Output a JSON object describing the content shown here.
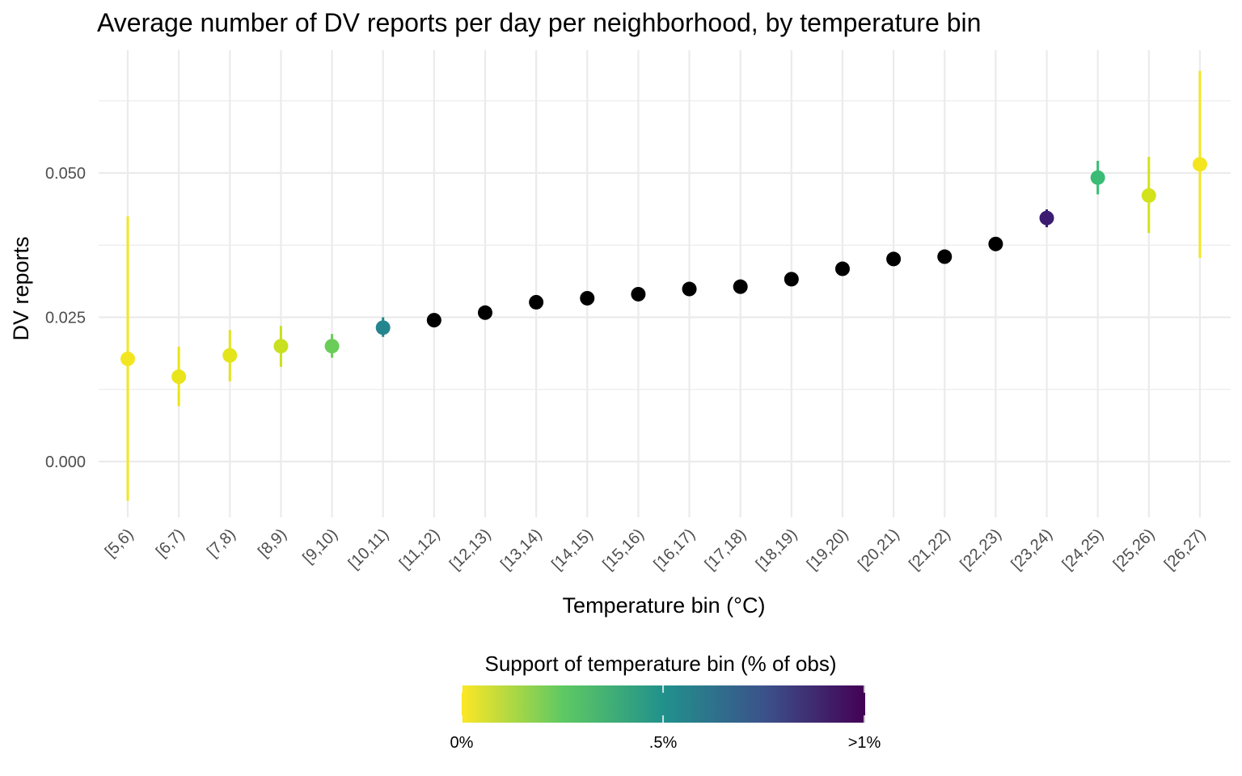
{
  "chart_data": {
    "type": "scatter",
    "title": "Average number of DV reports per day per neighborhood, by temperature bin",
    "xlabel": "Temperature bin (°C)",
    "ylabel": "DV reports",
    "ylim": [
      -0.0068,
      0.0675
    ],
    "yticks": [
      0.0,
      0.025,
      0.05
    ],
    "ytick_labels": [
      "0.000",
      "0.025",
      "0.050"
    ],
    "grid": true,
    "categories": [
      "[5,6)",
      "[6,7)",
      "[7,8)",
      "[8,9)",
      "[9,10)",
      "[10,11)",
      "[11,12)",
      "[12,13)",
      "[13,14)",
      "[14,15)",
      "[15,16)",
      "[16,17)",
      "[17,18)",
      "[18,19)",
      "[19,20)",
      "[20,21)",
      "[21,22)",
      "[22,23)",
      "[23,24)",
      "[24,25)",
      "[25,26)",
      "[26,27)"
    ],
    "series": [
      {
        "values": [
          0.0178,
          0.0147,
          0.0184,
          0.02,
          0.02,
          0.0232,
          0.0245,
          0.0258,
          0.0276,
          0.0283,
          0.029,
          0.0299,
          0.0303,
          0.0316,
          0.0334,
          0.0351,
          0.0355,
          0.0377,
          0.0422,
          0.0492,
          0.0461,
          0.0515
        ],
        "ci_low": [
          -0.0068,
          0.0096,
          0.0139,
          0.0164,
          0.018,
          0.0216,
          null,
          null,
          null,
          null,
          null,
          null,
          null,
          null,
          null,
          null,
          null,
          null,
          0.0406,
          0.0463,
          0.0396,
          0.0353
        ],
        "ci_high": [
          0.0425,
          0.0199,
          0.0228,
          0.0235,
          0.0221,
          0.025,
          null,
          null,
          null,
          null,
          null,
          null,
          null,
          null,
          null,
          null,
          null,
          null,
          0.0437,
          0.0521,
          0.0528,
          0.0677
        ],
        "support_colors": [
          "#f3e621",
          "#e9e41b",
          "#e3e41a",
          "#c9e020",
          "#6bcd59",
          "#25858e",
          "#000000",
          "#000000",
          "#000000",
          "#000000",
          "#000000",
          "#000000",
          "#000000",
          "#000000",
          "#000000",
          "#000000",
          "#000000",
          "#000000",
          "#3b1c71",
          "#3bbb75",
          "#d2e21b",
          "#f3e621"
        ]
      }
    ],
    "legend": {
      "title": "Support of temperature bin (% of obs)",
      "placement": "bottom",
      "tick_labels": [
        "0%",
        ".5%",
        ">1%"
      ],
      "colors": [
        "#fde725",
        "#5ec962",
        "#21918c",
        "#3b528b",
        "#440154"
      ]
    }
  }
}
